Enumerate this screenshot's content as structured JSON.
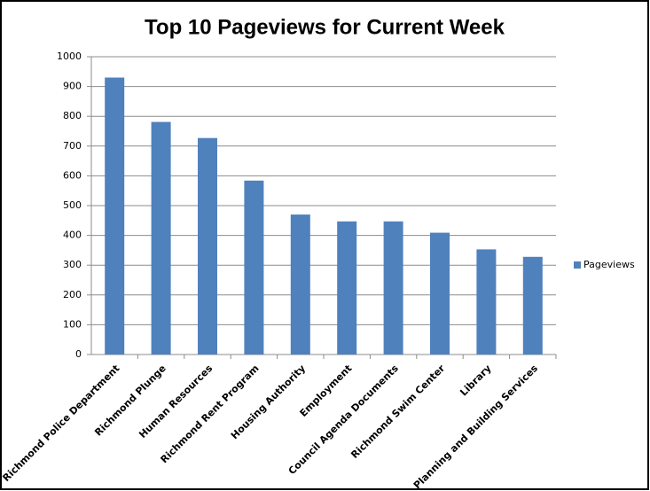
{
  "chart_data": {
    "type": "bar",
    "title": "Top 10 Pageviews for Current Week",
    "categories": [
      "Richmond Police Department",
      "Richmond Plunge",
      "Human Resources",
      "Richmond Rent Program",
      "Housing Authority",
      "Employment",
      "Council Agenda Documents",
      "Richmond Swim Center",
      "Library",
      "Planning and Building Services"
    ],
    "series": [
      {
        "name": "Pageviews",
        "color": "#4f81bd",
        "values": [
          930,
          781,
          727,
          584,
          470,
          447,
          447,
          409,
          353,
          328
        ]
      }
    ],
    "ylim": [
      0,
      1000
    ],
    "yticks": [
      0,
      100,
      200,
      300,
      400,
      500,
      600,
      700,
      800,
      900,
      1000
    ],
    "grid": true,
    "legend": "right"
  }
}
